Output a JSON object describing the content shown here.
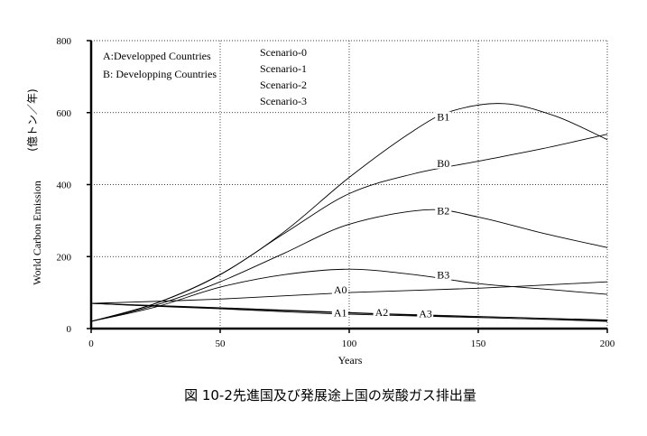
{
  "chart_data": {
    "type": "line",
    "caption": "図 10-2先進国及び発展途上国の炭酸ガス排出量",
    "xlabel": "Years",
    "ylabel": "World Carbon Emission",
    "ylabel_unit": "(億トン／年)",
    "xlim": [
      0,
      200
    ],
    "ylim": [
      0,
      800
    ],
    "x_ticks": [
      "0",
      "50",
      "100",
      "150",
      "200"
    ],
    "y_ticks": [
      "0",
      "200",
      "400",
      "600",
      "800"
    ],
    "grid": "dotted",
    "legend_groups": [
      "A:Developped Countries",
      "B: Developping Countries"
    ],
    "scenarios": [
      "Scenario-0",
      "Scenario-1",
      "Scenario-2",
      "Scenario-3"
    ],
    "series": [
      {
        "name": "B1",
        "label_at": [
          134,
          580
        ],
        "x": [
          0,
          25,
          50,
          75,
          100,
          125,
          140,
          160,
          180,
          200
        ],
        "y": [
          20,
          70,
          150,
          270,
          420,
          550,
          605,
          625,
          590,
          525
        ]
      },
      {
        "name": "B0",
        "label_at": [
          134,
          452
        ],
        "x": [
          0,
          25,
          50,
          75,
          100,
          125,
          150,
          175,
          200
        ],
        "y": [
          20,
          70,
          150,
          265,
          375,
          430,
          465,
          500,
          540
        ]
      },
      {
        "name": "B2",
        "label_at": [
          134,
          320
        ],
        "x": [
          0,
          25,
          50,
          75,
          100,
          130,
          150,
          175,
          200
        ],
        "y": [
          20,
          65,
          130,
          210,
          290,
          330,
          310,
          265,
          225
        ]
      },
      {
        "name": "B3",
        "label_at": [
          134,
          142
        ],
        "x": [
          0,
          25,
          50,
          75,
          100,
          125,
          150,
          175,
          200
        ],
        "y": [
          20,
          60,
          115,
          150,
          165,
          150,
          125,
          110,
          95
        ]
      },
      {
        "name": "A0",
        "label_at": [
          94,
          100
        ],
        "x": [
          0,
          50,
          100,
          150,
          200
        ],
        "y": [
          70,
          82,
          100,
          112,
          130
        ]
      },
      {
        "name": "A1",
        "label_at": [
          94,
          36
        ],
        "x": [
          0,
          25,
          50,
          100,
          200
        ],
        "y": [
          70,
          62,
          55,
          40,
          22
        ]
      },
      {
        "name": "A2",
        "label_at": [
          110,
          38
        ],
        "x": [
          0,
          50,
          110,
          200
        ],
        "y": [
          70,
          58,
          42,
          24
        ]
      },
      {
        "name": "A3",
        "label_at": [
          127,
          34
        ],
        "x": [
          0,
          50,
          130,
          200
        ],
        "y": [
          70,
          56,
          36,
          20
        ]
      }
    ]
  }
}
